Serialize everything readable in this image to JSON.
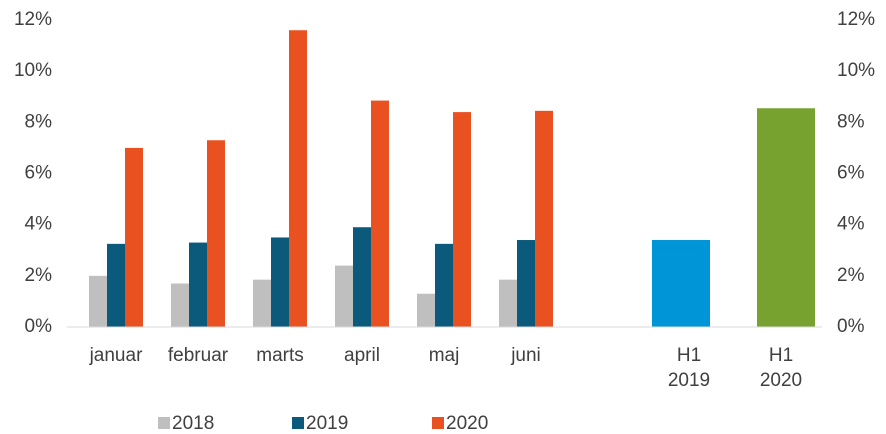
{
  "chart_data": {
    "type": "bar",
    "categories": [
      "januar",
      "februar",
      "marts",
      "april",
      "maj",
      "juni"
    ],
    "series": [
      {
        "name": "2018",
        "color": "#bfbfbf",
        "values": [
          2.0,
          1.7,
          1.85,
          2.4,
          1.3,
          1.85
        ]
      },
      {
        "name": "2019",
        "color": "#0b5a7c",
        "values": [
          3.25,
          3.3,
          3.5,
          3.9,
          3.25,
          3.4
        ]
      },
      {
        "name": "2020",
        "color": "#ea5120",
        "values": [
          7.0,
          7.3,
          11.6,
          8.85,
          8.4,
          8.45
        ]
      }
    ],
    "totals": {
      "axis": "y2",
      "categories": [
        "H1 2019",
        "H1 2020"
      ],
      "values": [
        3.4,
        8.55
      ],
      "colors": [
        "#0095d6",
        "#77a22f"
      ]
    },
    "ylim": [
      0,
      12
    ],
    "yticks": [
      {
        "value": 0,
        "label": "0%"
      },
      {
        "value": 2,
        "label": "2%"
      },
      {
        "value": 4,
        "label": "4%"
      },
      {
        "value": 6,
        "label": "6%"
      },
      {
        "value": 8,
        "label": "8%"
      },
      {
        "value": 10,
        "label": "10%"
      },
      {
        "value": 12,
        "label": "12%"
      }
    ],
    "y2lim": [
      0,
      12
    ],
    "y2ticks": [
      {
        "value": 0,
        "label": "0%"
      },
      {
        "value": 2,
        "label": "2%"
      },
      {
        "value": 4,
        "label": "4%"
      },
      {
        "value": 6,
        "label": "6%"
      },
      {
        "value": 8,
        "label": "8%"
      },
      {
        "value": 10,
        "label": "10%"
      },
      {
        "value": 12,
        "label": "12%"
      }
    ],
    "grid": false,
    "legend": "bottom"
  }
}
